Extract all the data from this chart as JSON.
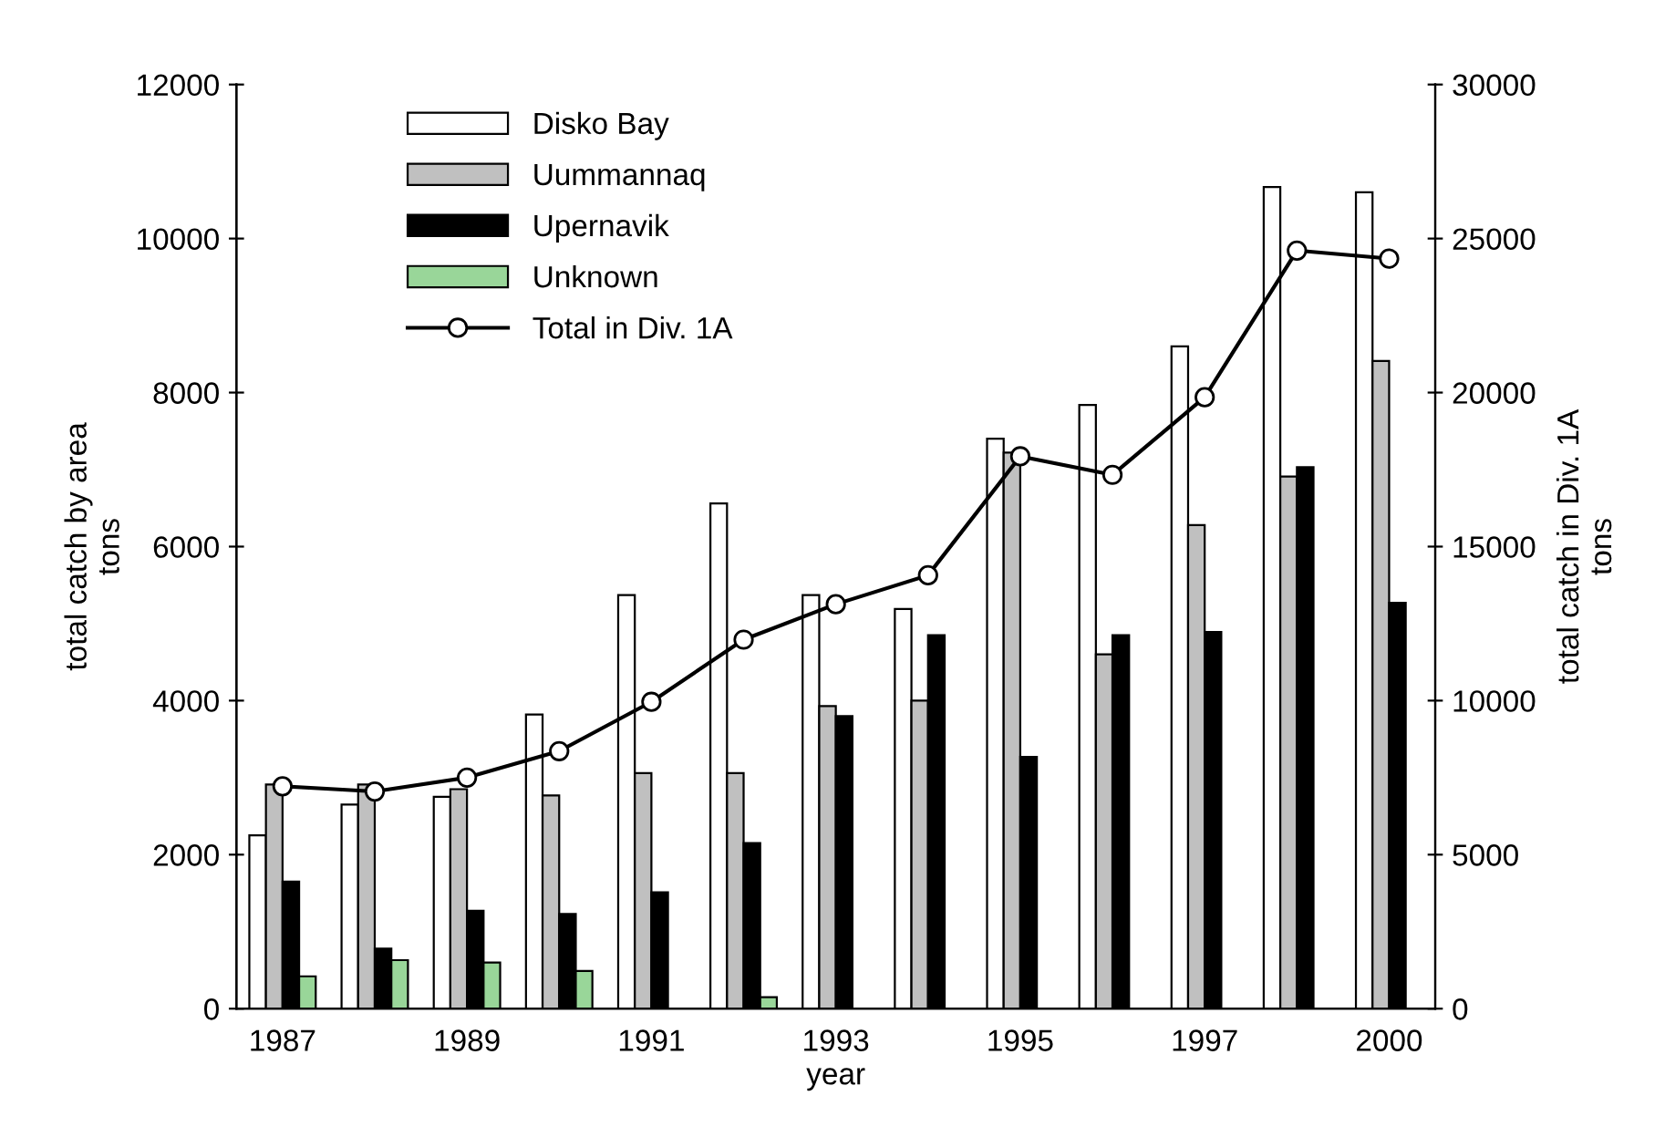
{
  "chart_data": {
    "type": "bar",
    "xlabel": "year",
    "ylabel": "total catch by area\ntons",
    "y2label": "total catch in Div. 1A\ntons",
    "categories": [
      "1987",
      null,
      "1989",
      null,
      "1991",
      null,
      "1993",
      null,
      "1995",
      null,
      "1997",
      null,
      "2000"
    ],
    "series": [
      {
        "name": "Disko Bay",
        "color": "#ffffff",
        "values": [
          2250,
          2650,
          2750,
          3820,
          5370,
          6560,
          5370,
          5190,
          7400,
          7840,
          8600,
          10670,
          10600
        ]
      },
      {
        "name": "Uummannaq",
        "color": "#c0c0c0",
        "values": [
          2910,
          2910,
          2850,
          2770,
          3060,
          3060,
          3930,
          4000,
          7220,
          4600,
          6280,
          6910,
          8410
        ]
      },
      {
        "name": "Upernavik",
        "color": "#000000",
        "values": [
          1650,
          780,
          1270,
          1230,
          1510,
          2150,
          3800,
          4850,
          3270,
          4850,
          4890,
          7030,
          5270
        ]
      },
      {
        "name": "Unknown",
        "color": "#99d699",
        "values": [
          420,
          630,
          600,
          490,
          null,
          150,
          null,
          null,
          null,
          null,
          null,
          null,
          null
        ]
      },
      {
        "name": "Total in Div. 1A",
        "type": "line",
        "axis": "y2",
        "color": "#000000",
        "marker": "circle",
        "values": [
          7220,
          7050,
          7500,
          8360,
          9960,
          11980,
          13130,
          14070,
          17930,
          17330,
          19850,
          24610,
          24350
        ]
      }
    ],
    "ylim": [
      0,
      12000
    ],
    "yticks": [
      0,
      2000,
      4000,
      6000,
      8000,
      10000,
      12000
    ],
    "y2lim": [
      0,
      30000
    ],
    "y2ticks": [
      0,
      5000,
      10000,
      15000,
      20000,
      25000,
      30000
    ],
    "legend": "top left",
    "grid": false
  }
}
